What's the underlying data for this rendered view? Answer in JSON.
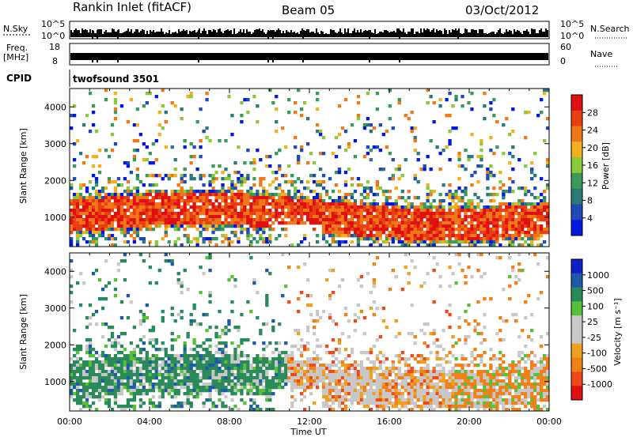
{
  "header": {
    "station": "Rankin Inlet (fitACF)",
    "beam": "Beam 05",
    "date": "03/Oct/2012"
  },
  "sky_panel": {
    "left_label": "N.Sky",
    "left_ticks": [
      "10^5",
      "10^0"
    ],
    "right_label": "N.Search",
    "right_ticks": [
      "10^5",
      "10^0"
    ]
  },
  "freq_panel": {
    "left_label_1": "Freq.",
    "left_label_2": "[MHz]",
    "left_ticks": [
      "18",
      "8"
    ],
    "right_label": "Nave",
    "right_ticks": [
      "60",
      "0"
    ]
  },
  "cpid": {
    "label": "CPID",
    "value": "twofsound 3501"
  },
  "colors": {
    "power_scale": [
      "#0018e0",
      "#1e4bb8",
      "#2a7a7a",
      "#3a9a5a",
      "#8ac83c",
      "#f0b020",
      "#f07818",
      "#e84010",
      "#e01010"
    ],
    "velocity_scale": [
      "#e01010",
      "#f04818",
      "#f08018",
      "#f0a020",
      "#c8c8c8",
      "#c8c8c8",
      "#58c038",
      "#2a8a5a",
      "#1e5aa8",
      "#1020c8"
    ]
  },
  "chart_data": [
    {
      "type": "heatmap",
      "name": "power",
      "ylabel": "Slant Range [km]",
      "yticks": [
        "1000",
        "2000",
        "3000",
        "4000"
      ],
      "ylim": [
        200,
        4500
      ],
      "xlim": [
        0,
        24
      ],
      "colorbar_label": "Power [dB]",
      "colorbar_ticks": [
        "4",
        "8",
        "12",
        "16",
        "20",
        "24",
        "28"
      ],
      "colorbar_range": [
        0,
        32
      ]
    },
    {
      "type": "heatmap",
      "name": "velocity",
      "ylabel": "Slant Range [km]",
      "yticks": [
        "1000",
        "2000",
        "3000",
        "4000"
      ],
      "ylim": [
        200,
        4500
      ],
      "xlim": [
        0,
        24
      ],
      "xlabel": "Time UT",
      "xticks": [
        "00:00",
        "04:00",
        "08:00",
        "12:00",
        "16:00",
        "20:00",
        "00:00"
      ],
      "colorbar_label": "Velocity [m s⁻¹]",
      "colorbar_ticks": [
        "1000",
        "500",
        "100",
        "25",
        "-25",
        "-100",
        "-500",
        "-1000"
      ]
    }
  ]
}
